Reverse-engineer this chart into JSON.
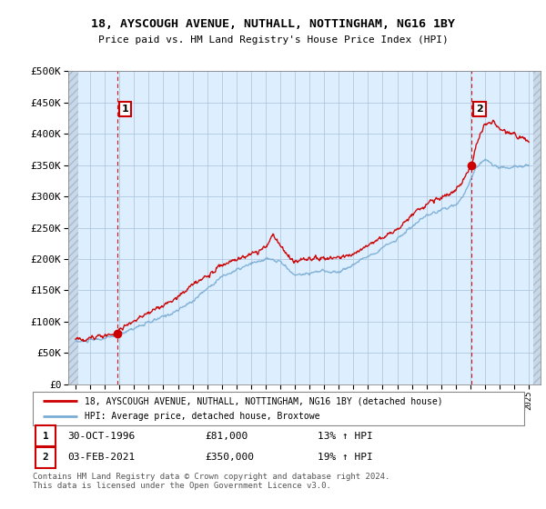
{
  "title": "18, AYSCOUGH AVENUE, NUTHALL, NOTTINGHAM, NG16 1BY",
  "subtitle": "Price paid vs. HM Land Registry's House Price Index (HPI)",
  "legend_line1": "18, AYSCOUGH AVENUE, NUTHALL, NOTTINGHAM, NG16 1BY (detached house)",
  "legend_line2": "HPI: Average price, detached house, Broxtowe",
  "sale1_date": "30-OCT-1996",
  "sale1_price": "£81,000",
  "sale1_hpi": "13% ↑ HPI",
  "sale2_date": "03-FEB-2021",
  "sale2_price": "£350,000",
  "sale2_hpi": "19% ↑ HPI",
  "footer": "Contains HM Land Registry data © Crown copyright and database right 2024.\nThis data is licensed under the Open Government Licence v3.0.",
  "red_color": "#cc0000",
  "blue_color": "#7aadd4",
  "bg_color": "#ddeeff",
  "ylim_min": 0,
  "ylim_max": 500000,
  "ytick_step": 50000,
  "sale1_year": 1996.83,
  "sale1_value": 81000,
  "sale2_year": 2021.09,
  "sale2_value": 350000
}
